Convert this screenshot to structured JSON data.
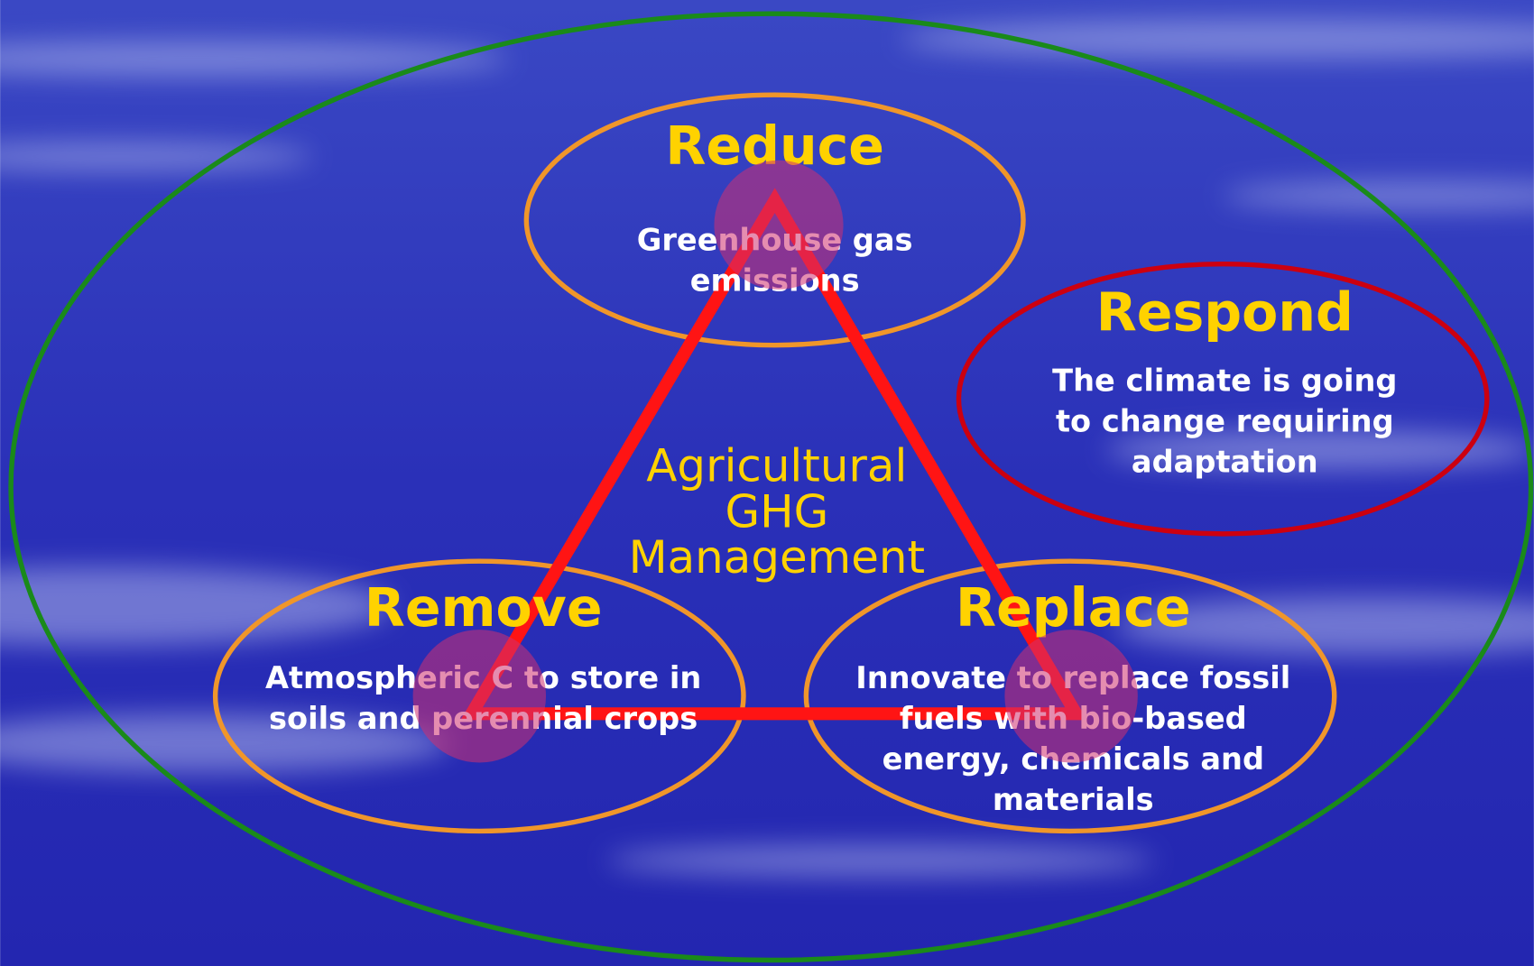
{
  "center": {
    "lines": [
      "Agricultural",
      "GHG",
      "Management"
    ]
  },
  "nodes": [
    {
      "title": "Reduce",
      "lines": [
        "Greenhouse gas",
        "emissions"
      ]
    },
    {
      "title": "Respond",
      "lines": [
        "The climate is going",
        "to change requiring",
        "adaptation"
      ]
    },
    {
      "title": "Remove",
      "lines": [
        "Atmospheric C to store in",
        "soils and perennial crops"
      ]
    },
    {
      "title": "Replace",
      "lines": [
        "Innovate to replace fossil",
        "fuels with bio-based",
        "energy, chemicals and",
        "materials"
      ]
    }
  ]
}
